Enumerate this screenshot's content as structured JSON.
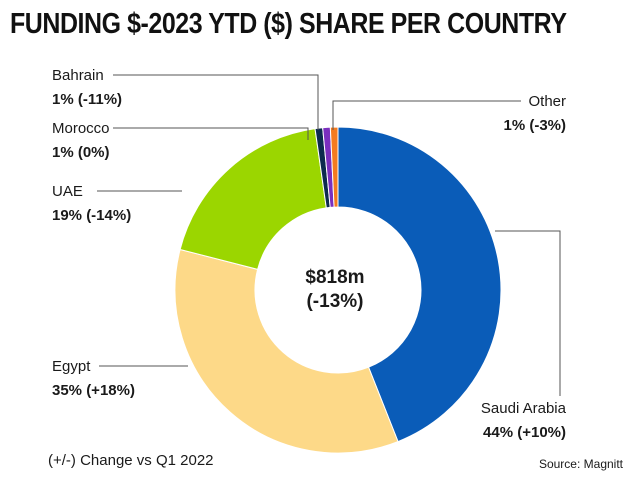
{
  "title": "FUNDING $-2023 YTD ($) SHARE PER COUNTRY",
  "chart_data": {
    "type": "pie",
    "variant": "donut",
    "center_label": {
      "line1": "$818m",
      "line2": "(-13%)"
    },
    "slices": [
      {
        "name": "Saudi Arabia",
        "value": 44,
        "label": "44% (+10%)",
        "color": "#0a5cb8"
      },
      {
        "name": "Egypt",
        "value": 35,
        "label": "35% (+18%)",
        "color": "#fdd988"
      },
      {
        "name": "UAE",
        "value": 19,
        "label": "19% (-14%)",
        "color": "#9bd600"
      },
      {
        "name": "Morocco",
        "value": 1,
        "label": "1% (0%)",
        "color": "#0d2b4e"
      },
      {
        "name": "Bahrain",
        "value": 1,
        "label": "1% (-11%)",
        "color": "#7b2fbe"
      },
      {
        "name": "Other",
        "value": 1,
        "label": "1% (-3%)",
        "color": "#f47b20"
      }
    ]
  },
  "note": "(+/-) Change vs Q1 2022",
  "source": "Source: Magnitt"
}
